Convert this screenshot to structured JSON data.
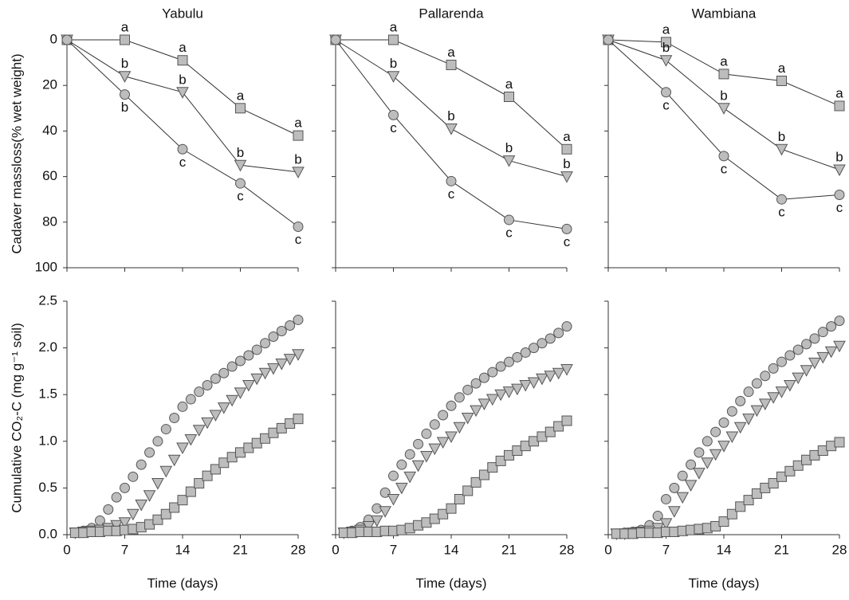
{
  "chart_data": [
    {
      "type": "line",
      "title": "Yabulu",
      "ylabel": "Cadaver massloss(% wet weight)",
      "x": [
        0,
        7,
        14,
        21,
        28
      ],
      "xlim": [
        0,
        28
      ],
      "xticks": [
        0,
        7,
        14,
        21,
        28
      ],
      "xtick_labels": false,
      "ylim": [
        100,
        0
      ],
      "yticks": [
        0,
        20,
        40,
        60,
        80,
        100
      ],
      "ytick_labels": true,
      "series": [
        {
          "marker": "square",
          "color": "#bdbdbd",
          "values": [
            0,
            0,
            9,
            30,
            42
          ],
          "letters": [
            null,
            "a",
            "a",
            "a",
            "a"
          ]
        },
        {
          "marker": "triangle",
          "color": "#bdbdbd",
          "values": [
            0,
            16,
            23,
            55,
            58
          ],
          "letters": [
            null,
            "b",
            "b",
            "b",
            "b"
          ]
        },
        {
          "marker": "circle",
          "color": "#bdbdbd",
          "values": [
            0,
            24,
            48,
            63,
            82
          ],
          "letters": [
            null,
            "b",
            "c",
            "c",
            "c"
          ]
        }
      ]
    },
    {
      "type": "line",
      "title": "Pallarenda",
      "x": [
        0,
        7,
        14,
        21,
        28
      ],
      "xlim": [
        0,
        28
      ],
      "xticks": [
        0,
        7,
        14,
        21,
        28
      ],
      "xtick_labels": false,
      "ylim": [
        100,
        0
      ],
      "yticks": [
        0,
        20,
        40,
        60,
        80,
        100
      ],
      "ytick_labels": false,
      "series": [
        {
          "marker": "square",
          "color": "#bdbdbd",
          "values": [
            0,
            0,
            11,
            25,
            48
          ],
          "letters": [
            null,
            "a",
            "a",
            "a",
            "a"
          ]
        },
        {
          "marker": "triangle",
          "color": "#bdbdbd",
          "values": [
            0,
            16,
            39,
            53,
            60
          ],
          "letters": [
            null,
            "b",
            "b",
            "b",
            "b"
          ]
        },
        {
          "marker": "circle",
          "color": "#bdbdbd",
          "values": [
            0,
            33,
            62,
            79,
            83
          ],
          "letters": [
            null,
            "c",
            "c",
            "c",
            "c"
          ]
        }
      ]
    },
    {
      "type": "line",
      "title": "Wambiana",
      "x": [
        0,
        7,
        14,
        21,
        28
      ],
      "xlim": [
        0,
        28
      ],
      "xticks": [
        0,
        7,
        14,
        21,
        28
      ],
      "xtick_labels": false,
      "ylim": [
        100,
        0
      ],
      "yticks": [
        0,
        20,
        40,
        60,
        80,
        100
      ],
      "ytick_labels": false,
      "series": [
        {
          "marker": "square",
          "color": "#bdbdbd",
          "values": [
            0,
            1,
            15,
            18,
            29
          ],
          "letters": [
            null,
            "a",
            "a",
            "a",
            "a"
          ]
        },
        {
          "marker": "triangle",
          "color": "#bdbdbd",
          "values": [
            0,
            9,
            30,
            48,
            57
          ],
          "letters": [
            null,
            "b",
            "b",
            "b",
            "b"
          ]
        },
        {
          "marker": "circle",
          "color": "#bdbdbd",
          "values": [
            0,
            23,
            51,
            70,
            68
          ],
          "letters": [
            null,
            "c",
            "c",
            "c",
            "c"
          ]
        }
      ]
    },
    {
      "type": "scatter",
      "ylabel": "Cumulative CO₂-C (mg g⁻¹ soil)",
      "xlabel": "Time (days)",
      "x": [
        1,
        2,
        3,
        4,
        5,
        6,
        7,
        8,
        9,
        10,
        11,
        12,
        13,
        14,
        15,
        16,
        17,
        18,
        19,
        20,
        21,
        22,
        23,
        24,
        25,
        26,
        27,
        28
      ],
      "xlim": [
        0,
        28
      ],
      "xticks": [
        0,
        7,
        14,
        21,
        28
      ],
      "xtick_labels": true,
      "ylim": [
        0,
        2.5
      ],
      "yticks": [
        {
          "value": 0,
          "label": "0.0"
        },
        {
          "value": 0.5,
          "label": "0.5"
        },
        {
          "value": 1,
          "label": "1.0"
        },
        {
          "value": 1.5,
          "label": "1.5"
        },
        {
          "value": 2,
          "label": "2.0"
        },
        {
          "value": 2.5,
          "label": "2.5"
        }
      ],
      "ytick_labels": true,
      "series": [
        {
          "marker": "circle",
          "color": "#bdbdbd",
          "values": [
            0.02,
            0.04,
            0.07,
            0.15,
            0.27,
            0.4,
            0.5,
            0.62,
            0.75,
            0.88,
            1.0,
            1.13,
            1.25,
            1.37,
            1.45,
            1.53,
            1.6,
            1.67,
            1.73,
            1.8,
            1.86,
            1.92,
            1.98,
            2.05,
            2.12,
            2.18,
            2.24,
            2.3
          ]
        },
        {
          "marker": "triangle",
          "color": "#bdbdbd",
          "values": [
            0.02,
            0.03,
            0.04,
            0.05,
            0.07,
            0.1,
            0.13,
            0.22,
            0.32,
            0.42,
            0.55,
            0.68,
            0.8,
            0.93,
            1.02,
            1.12,
            1.2,
            1.28,
            1.36,
            1.44,
            1.52,
            1.6,
            1.67,
            1.73,
            1.78,
            1.83,
            1.88,
            1.93
          ]
        },
        {
          "marker": "square",
          "color": "#bdbdbd",
          "values": [
            0.02,
            0.02,
            0.03,
            0.03,
            0.04,
            0.04,
            0.05,
            0.06,
            0.08,
            0.11,
            0.16,
            0.22,
            0.29,
            0.37,
            0.46,
            0.55,
            0.63,
            0.7,
            0.77,
            0.83,
            0.88,
            0.93,
            0.98,
            1.03,
            1.09,
            1.14,
            1.19,
            1.24
          ]
        }
      ]
    },
    {
      "type": "scatter",
      "xlabel": "Time (days)",
      "x": [
        1,
        2,
        3,
        4,
        5,
        6,
        7,
        8,
        9,
        10,
        11,
        12,
        13,
        14,
        15,
        16,
        17,
        18,
        19,
        20,
        21,
        22,
        23,
        24,
        25,
        26,
        27,
        28
      ],
      "xlim": [
        0,
        28
      ],
      "xticks": [
        0,
        7,
        14,
        21,
        28
      ],
      "xtick_labels": true,
      "ylim": [
        0,
        2.5
      ],
      "yticks": [
        0,
        0.5,
        1,
        1.5,
        2,
        2.5
      ],
      "ytick_labels": false,
      "series": [
        {
          "marker": "circle",
          "color": "#bdbdbd",
          "values": [
            0.02,
            0.04,
            0.08,
            0.16,
            0.28,
            0.45,
            0.63,
            0.75,
            0.86,
            0.97,
            1.08,
            1.18,
            1.28,
            1.38,
            1.47,
            1.55,
            1.62,
            1.68,
            1.74,
            1.8,
            1.85,
            1.9,
            1.95,
            2.0,
            2.05,
            2.1,
            2.16,
            2.23
          ]
        },
        {
          "marker": "triangle",
          "color": "#bdbdbd",
          "values": [
            0.02,
            0.03,
            0.05,
            0.09,
            0.15,
            0.25,
            0.38,
            0.5,
            0.62,
            0.74,
            0.84,
            0.92,
            0.99,
            1.05,
            1.15,
            1.25,
            1.33,
            1.4,
            1.45,
            1.5,
            1.53,
            1.56,
            1.6,
            1.63,
            1.67,
            1.7,
            1.73,
            1.77
          ]
        },
        {
          "marker": "square",
          "color": "#bdbdbd",
          "values": [
            0.02,
            0.02,
            0.03,
            0.03,
            0.03,
            0.04,
            0.04,
            0.05,
            0.07,
            0.1,
            0.13,
            0.17,
            0.22,
            0.28,
            0.38,
            0.47,
            0.56,
            0.64,
            0.72,
            0.79,
            0.85,
            0.9,
            0.95,
            1.0,
            1.05,
            1.1,
            1.16,
            1.22
          ]
        }
      ]
    },
    {
      "type": "scatter",
      "xlabel": "Time (days)",
      "x": [
        1,
        2,
        3,
        4,
        5,
        6,
        7,
        8,
        9,
        10,
        11,
        12,
        13,
        14,
        15,
        16,
        17,
        18,
        19,
        20,
        21,
        22,
        23,
        24,
        25,
        26,
        27,
        28
      ],
      "xlim": [
        0,
        28
      ],
      "xticks": [
        0,
        7,
        14,
        21,
        28
      ],
      "xtick_labels": true,
      "ylim": [
        0,
        2.5
      ],
      "yticks": [
        0,
        0.5,
        1,
        1.5,
        2,
        2.5
      ],
      "ytick_labels": false,
      "series": [
        {
          "marker": "circle",
          "color": "#bdbdbd",
          "values": [
            0.01,
            0.02,
            0.03,
            0.05,
            0.1,
            0.2,
            0.38,
            0.5,
            0.63,
            0.75,
            0.88,
            1.0,
            1.1,
            1.2,
            1.32,
            1.43,
            1.53,
            1.62,
            1.7,
            1.78,
            1.85,
            1.92,
            1.98,
            2.04,
            2.1,
            2.17,
            2.23,
            2.29
          ]
        },
        {
          "marker": "triangle",
          "color": "#bdbdbd",
          "values": [
            0.01,
            0.01,
            0.02,
            0.03,
            0.04,
            0.07,
            0.12,
            0.25,
            0.4,
            0.53,
            0.66,
            0.77,
            0.86,
            0.95,
            1.05,
            1.15,
            1.24,
            1.33,
            1.4,
            1.47,
            1.53,
            1.6,
            1.68,
            1.76,
            1.84,
            1.9,
            1.96,
            2.02
          ]
        },
        {
          "marker": "square",
          "color": "#bdbdbd",
          "values": [
            0.01,
            0.01,
            0.01,
            0.02,
            0.02,
            0.02,
            0.03,
            0.03,
            0.04,
            0.05,
            0.06,
            0.07,
            0.09,
            0.14,
            0.22,
            0.3,
            0.37,
            0.44,
            0.5,
            0.55,
            0.62,
            0.68,
            0.74,
            0.8,
            0.85,
            0.9,
            0.95,
            0.99
          ]
        }
      ]
    }
  ]
}
